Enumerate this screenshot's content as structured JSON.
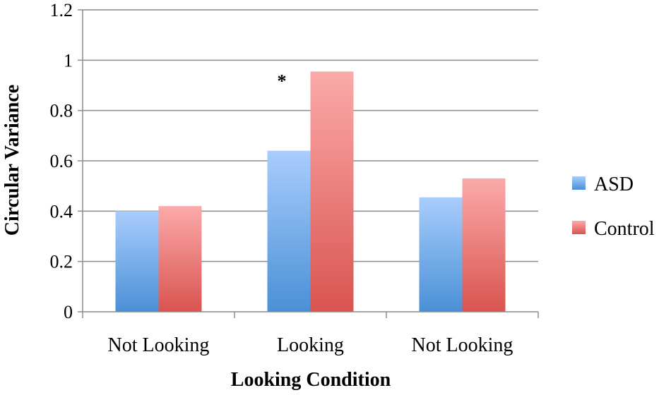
{
  "chart_data": {
    "type": "bar",
    "categories": [
      "Not Looking",
      "Looking",
      "Not Looking"
    ],
    "series": [
      {
        "name": "ASD",
        "values": [
          0.4,
          0.64,
          0.455
        ],
        "color_top": "#a9cdfc",
        "color_bottom": "#4a90d6"
      },
      {
        "name": "Control",
        "values": [
          0.42,
          0.955,
          0.53
        ],
        "color_top": "#fbaaaa",
        "color_bottom": "#d9544f"
      }
    ],
    "xlabel": "Looking Condition",
    "ylabel": "Circular Variance",
    "ylim": [
      0,
      1.2
    ],
    "yticks": [
      0,
      0.2,
      0.4,
      0.6,
      0.8,
      1,
      1.2
    ],
    "ytick_labels": [
      "0",
      "0.2",
      "0.4",
      "0.6",
      "0.8",
      "1",
      "1.2"
    ],
    "grid": true,
    "legend_position": "right",
    "annotations": [
      {
        "text": "*",
        "category_index": 1,
        "value": 0.955
      }
    ]
  }
}
